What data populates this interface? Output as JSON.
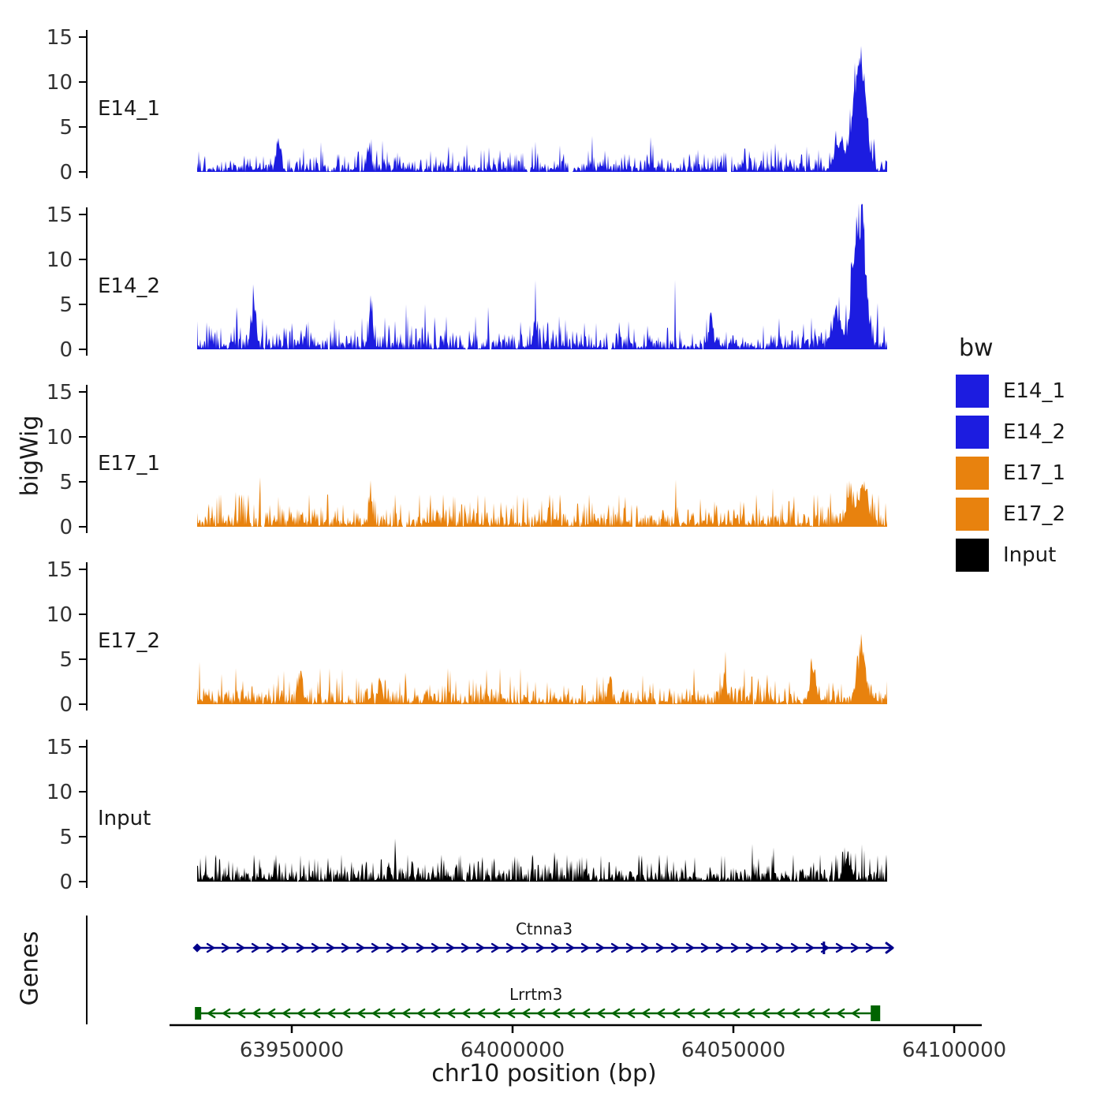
{
  "figure": {
    "y_axis_label_tracks": "bigWig",
    "y_axis_label_genes": "Genes",
    "x_axis_label": "chr10 position (bp)"
  },
  "legend": {
    "title": "bw",
    "entries": [
      {
        "label": "E14_1",
        "color": "#1C1CE0"
      },
      {
        "label": "E14_2",
        "color": "#1C1CE0"
      },
      {
        "label": "E17_1",
        "color": "#E8820E"
      },
      {
        "label": "E17_2",
        "color": "#E8820E"
      },
      {
        "label": "Input",
        "color": "#000000"
      }
    ]
  },
  "chart_data": {
    "type": "area",
    "title": "",
    "xlabel": "chr10 position (bp)",
    "ylabel": "bigWig",
    "chromosome": "chr10",
    "x_domain": [
      63928600,
      64084800
    ],
    "x_ticks": [
      {
        "value": 63950000,
        "label": "63950000"
      },
      {
        "value": 64000000,
        "label": "64000000"
      },
      {
        "value": 64050000,
        "label": "64050000"
      },
      {
        "value": 64100000,
        "label": "64100000"
      }
    ],
    "y_ticks": [
      0,
      5,
      10,
      15
    ],
    "ylim": [
      0,
      16.2
    ],
    "grid": false,
    "legend_position": "right",
    "tracks": [
      {
        "label": "E14_1",
        "color": "#1C1CE0",
        "noise_mean": 0.7,
        "noise_cap": 4.0,
        "render_seed": 101,
        "peaks": [
          {
            "pos": 63947000,
            "height": 3.2,
            "width_bp": 1200
          },
          {
            "pos": 63967500,
            "height": 2.8,
            "width_bp": 900
          },
          {
            "pos": 64074000,
            "height": 3.0,
            "width_bp": 2500
          },
          {
            "pos": 64078500,
            "height": 12.6,
            "width_bp": 3200
          }
        ]
      },
      {
        "label": "E14_2",
        "color": "#1C1CE0",
        "noise_mean": 0.95,
        "noise_cap": 5.0,
        "render_seed": 202,
        "peaks": [
          {
            "pos": 63941500,
            "height": 4.6,
            "width_bp": 1000
          },
          {
            "pos": 63968000,
            "height": 4.6,
            "width_bp": 900
          },
          {
            "pos": 64005000,
            "height": 3.0,
            "width_bp": 800
          },
          {
            "pos": 64045000,
            "height": 3.4,
            "width_bp": 900
          },
          {
            "pos": 64073500,
            "height": 3.6,
            "width_bp": 2200
          },
          {
            "pos": 64078500,
            "height": 15.0,
            "width_bp": 3000
          }
        ]
      },
      {
        "label": "E17_1",
        "color": "#E8820E",
        "noise_mean": 0.95,
        "noise_cap": 3.6,
        "render_seed": 303,
        "peaks": [
          {
            "pos": 63968000,
            "height": 2.4,
            "width_bp": 1000
          },
          {
            "pos": 64076500,
            "height": 2.4,
            "width_bp": 2500
          },
          {
            "pos": 64079500,
            "height": 4.4,
            "width_bp": 2000
          }
        ]
      },
      {
        "label": "E17_2",
        "color": "#E8820E",
        "noise_mean": 0.8,
        "noise_cap": 4.0,
        "render_seed": 404,
        "peaks": [
          {
            "pos": 63952000,
            "height": 2.6,
            "width_bp": 900
          },
          {
            "pos": 63970000,
            "height": 3.0,
            "width_bp": 900
          },
          {
            "pos": 64022000,
            "height": 2.4,
            "width_bp": 800
          },
          {
            "pos": 64048000,
            "height": 2.6,
            "width_bp": 900
          },
          {
            "pos": 64068000,
            "height": 2.8,
            "width_bp": 1800
          },
          {
            "pos": 64079000,
            "height": 5.6,
            "width_bp": 2200
          }
        ]
      },
      {
        "label": "Input",
        "color": "#000000",
        "noise_mean": 0.85,
        "noise_cap": 3.0,
        "render_seed": 505,
        "peaks": [
          {
            "pos": 64076000,
            "height": 1.8,
            "width_bp": 2000
          }
        ]
      }
    ],
    "genes": [
      {
        "name": "Ctnna3",
        "color": "#00008B",
        "strand": "+",
        "start": 63928400,
        "end": 64085900,
        "style": "arrows",
        "exon_marks": [
          64070500
        ]
      },
      {
        "name": "Lrrtm3",
        "color": "#006400",
        "strand": "-",
        "start": 63928600,
        "end": 64082000,
        "style": "end_boxes",
        "exon_marks": []
      }
    ]
  }
}
